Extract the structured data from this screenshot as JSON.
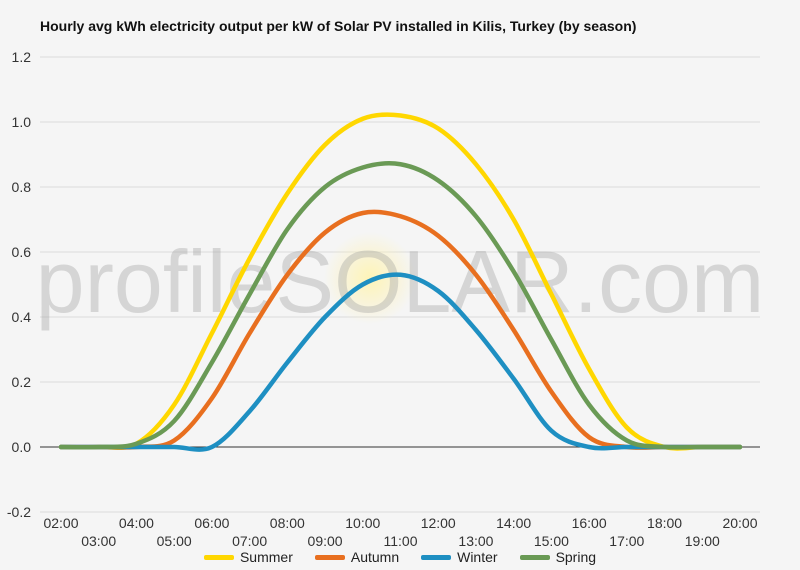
{
  "chart_data": {
    "type": "line",
    "title": "Hourly avg kWh electricity output per kW of Solar PV installed in Kilis, Turkey (by season)",
    "watermark": "profileSOLAR.com",
    "xlabel": "",
    "ylabel": "",
    "ylim": [
      -0.2,
      1.2
    ],
    "yticks": [
      "1.2",
      "1.0",
      "0.8",
      "0.6",
      "0.4",
      "0.2",
      "0.0",
      "-0.2"
    ],
    "ytick_values": [
      1.2,
      1.0,
      0.8,
      0.6,
      0.4,
      0.2,
      0.0,
      -0.2
    ],
    "categories": [
      "02:00",
      "03:00",
      "04:00",
      "05:00",
      "06:00",
      "07:00",
      "08:00",
      "09:00",
      "10:00",
      "11:00",
      "12:00",
      "13:00",
      "14:00",
      "15:00",
      "16:00",
      "17:00",
      "18:00",
      "19:00",
      "20:00"
    ],
    "grid": true,
    "legend_position": "bottom",
    "series": [
      {
        "name": "Summer",
        "color": "#FFD700",
        "values": [
          0.0,
          0.0,
          0.01,
          0.13,
          0.35,
          0.58,
          0.78,
          0.93,
          1.01,
          1.02,
          0.98,
          0.87,
          0.7,
          0.47,
          0.24,
          0.06,
          0.0,
          0.0,
          0.0
        ]
      },
      {
        "name": "Autumn",
        "color": "#E86F1F",
        "values": [
          0.0,
          0.0,
          0.0,
          0.02,
          0.15,
          0.35,
          0.53,
          0.66,
          0.72,
          0.71,
          0.65,
          0.53,
          0.36,
          0.17,
          0.03,
          0.0,
          0.0,
          0.0,
          0.0
        ]
      },
      {
        "name": "Winter",
        "color": "#1E8FC2",
        "values": [
          0.0,
          0.0,
          0.0,
          0.0,
          0.0,
          0.11,
          0.26,
          0.4,
          0.5,
          0.53,
          0.48,
          0.36,
          0.21,
          0.05,
          0.0,
          0.0,
          0.0,
          0.0,
          0.0
        ]
      },
      {
        "name": "Spring",
        "color": "#6A9A55",
        "values": [
          0.0,
          0.0,
          0.01,
          0.08,
          0.26,
          0.47,
          0.67,
          0.8,
          0.86,
          0.87,
          0.82,
          0.71,
          0.54,
          0.33,
          0.13,
          0.02,
          0.0,
          0.0,
          0.0
        ]
      }
    ]
  }
}
